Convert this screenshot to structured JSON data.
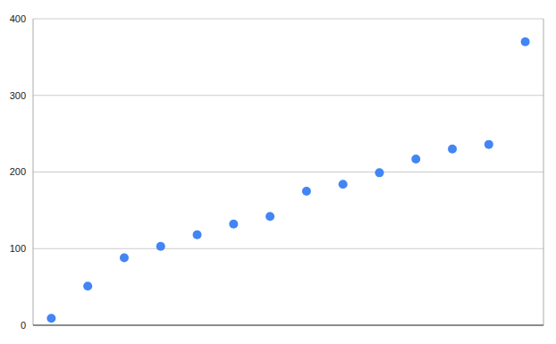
{
  "chart_data": {
    "type": "scatter",
    "x": [
      1,
      2,
      3,
      4,
      5,
      6,
      7,
      8,
      9,
      10,
      11,
      12,
      13,
      14
    ],
    "values": [
      9,
      51,
      88,
      103,
      118,
      132,
      142,
      175,
      184,
      199,
      217,
      230,
      236,
      370
    ],
    "color": "#4285f4",
    "marker": "circle",
    "xlim": [
      0.5,
      14.5
    ],
    "ylim": [
      0,
      400
    ],
    "yticks": [
      0,
      100,
      200,
      300,
      400
    ],
    "grid": true,
    "tick_labels": "y"
  }
}
